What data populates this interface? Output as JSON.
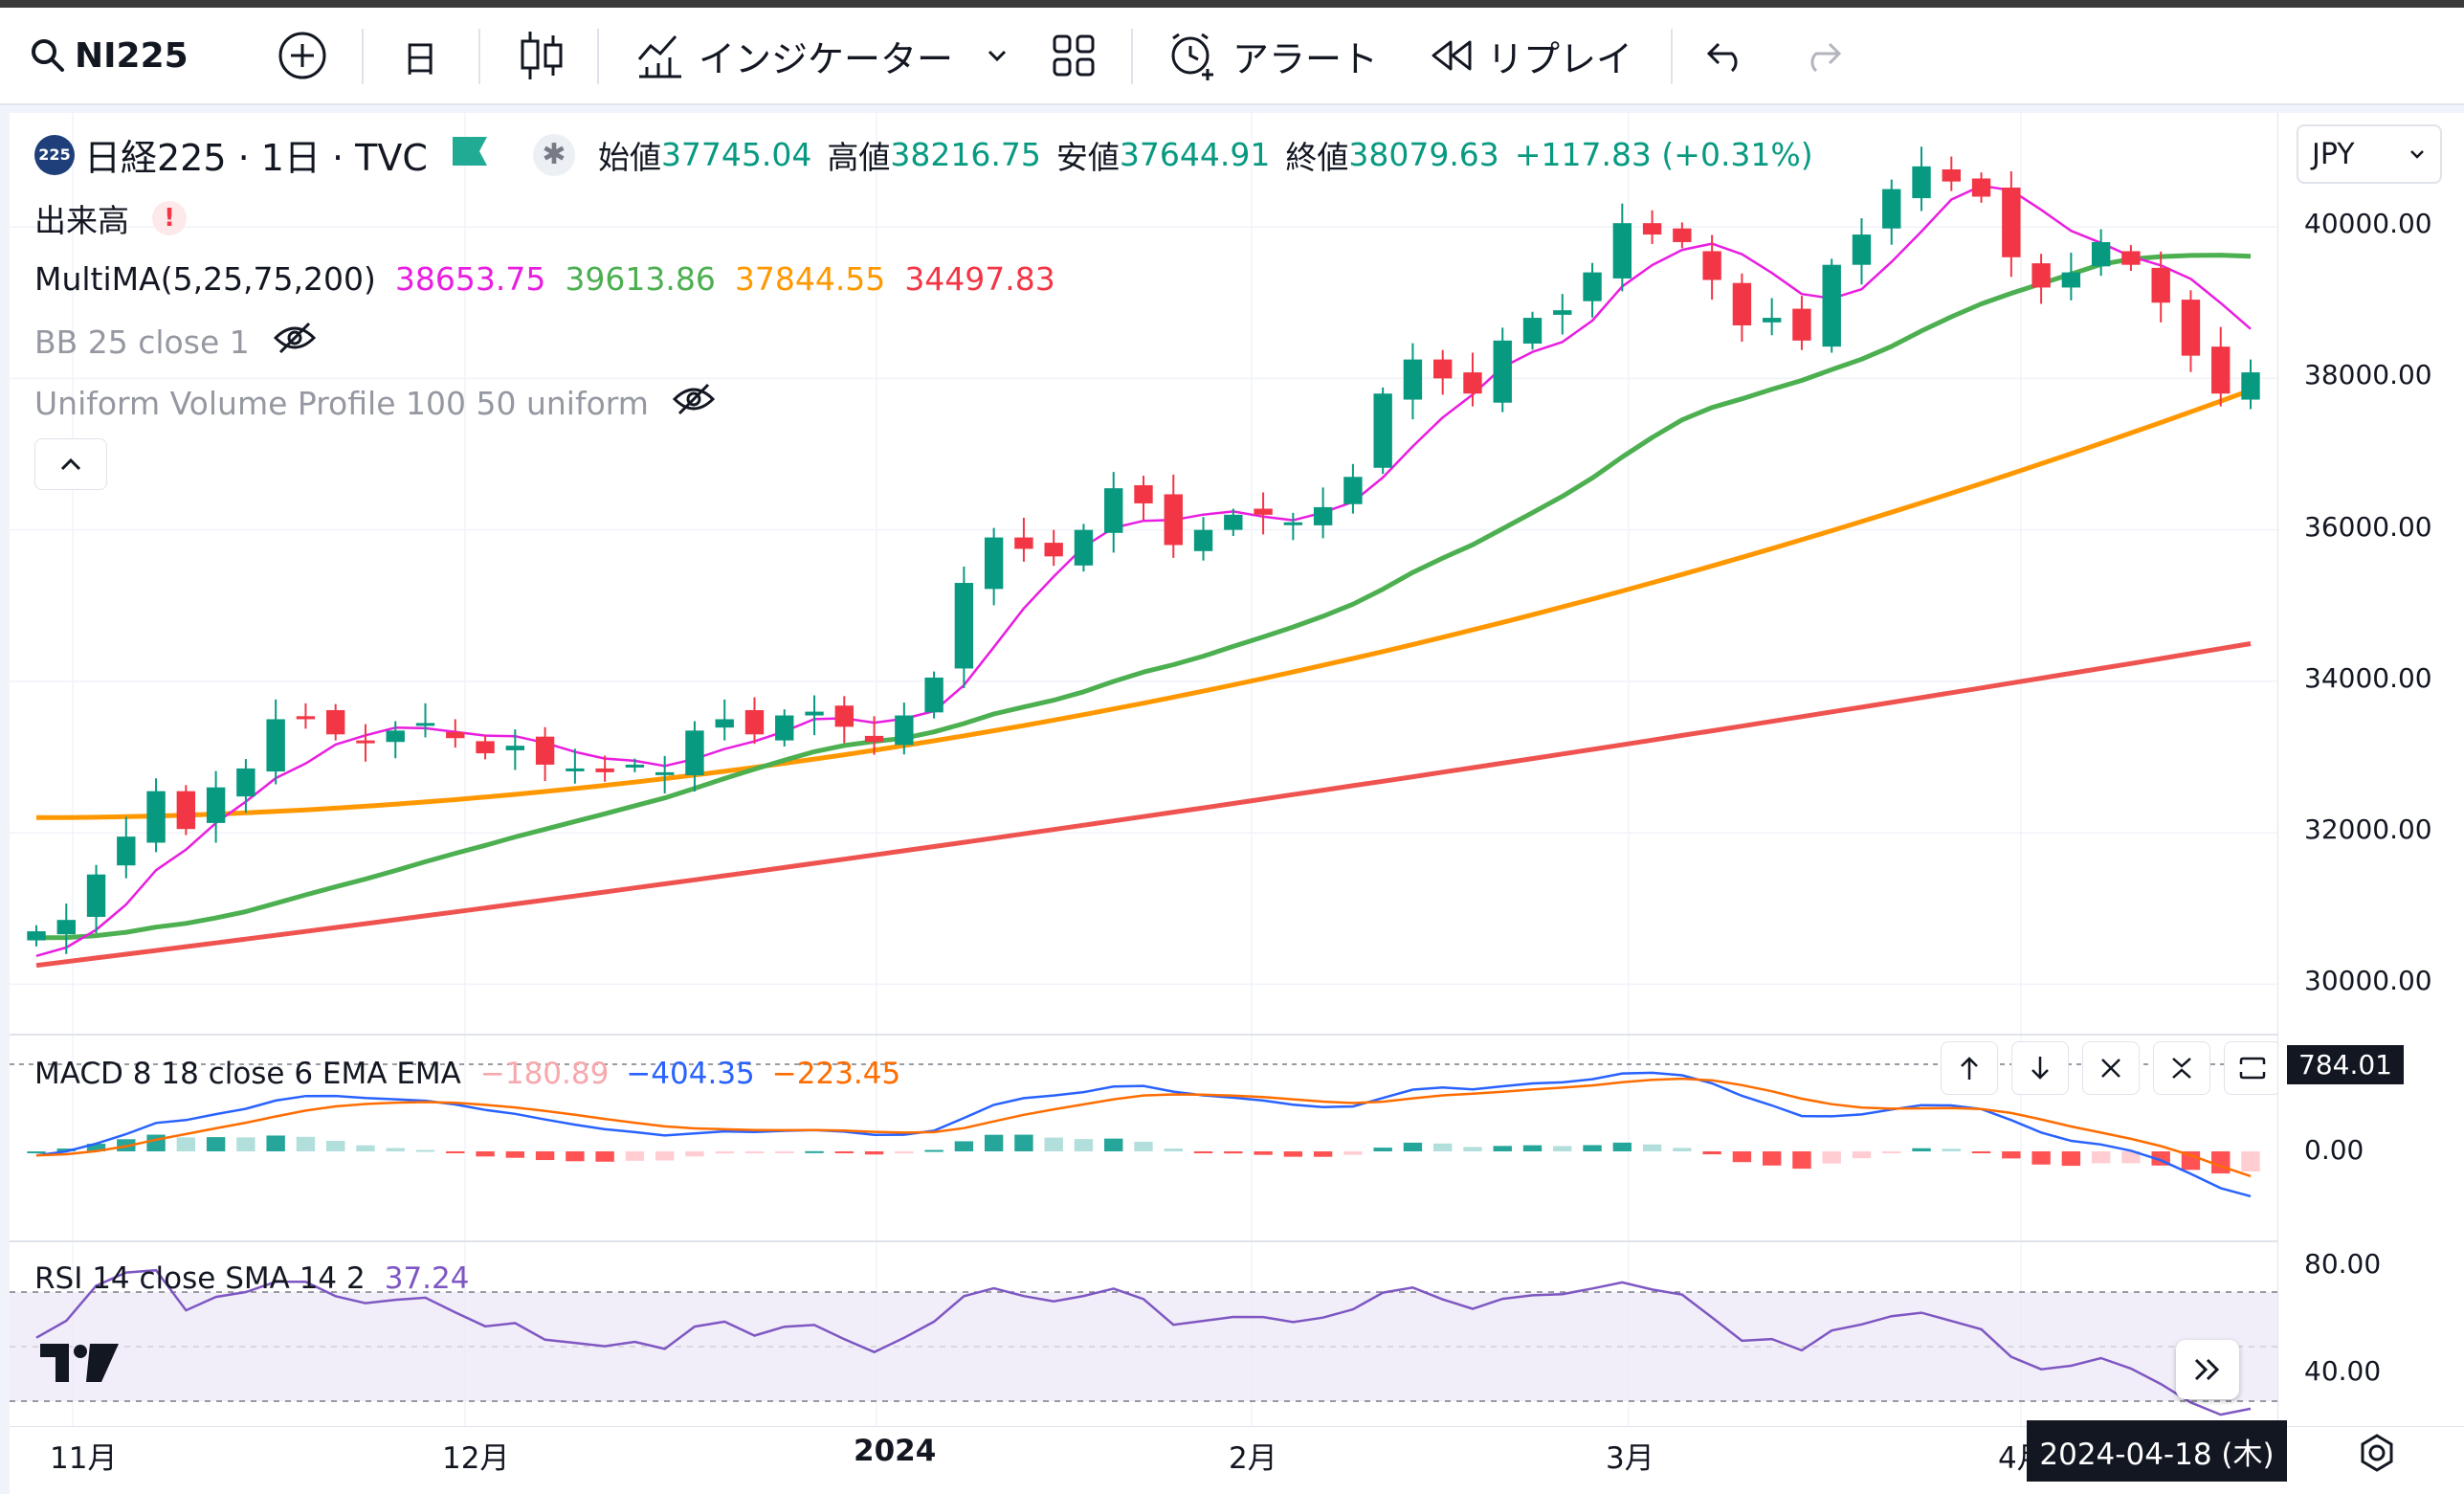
{
  "toolbar": {
    "symbol": "NI225",
    "interval": "日",
    "indicators_label": "インジケーター",
    "alert_label": "アラート",
    "replay_label": "リプレイ"
  },
  "legend": {
    "title": "日経225 · 1日 · TVC",
    "ohlc": [
      {
        "label": "始値",
        "value": "37745.04"
      },
      {
        "label": "高値",
        "value": "38216.75"
      },
      {
        "label": "安値",
        "value": "37644.91"
      },
      {
        "label": "終値",
        "value": "38079.63"
      }
    ],
    "change": "+117.83 (+0.31%)",
    "volume_label": "出来高",
    "multima_label": "MultiMA(5,25,75,200)",
    "multima_values": [
      "38653.75",
      "39613.86",
      "37844.55",
      "34497.83"
    ],
    "bb_label": "BB 25 close 1",
    "vp_label": "Uniform Volume Profile 100 50 uniform",
    "macd_label": "MACD 8 18 close 6 EMA EMA",
    "macd_values": [
      "−180.89",
      "−404.35",
      "−223.45"
    ],
    "rsi_label": "RSI 14 close SMA 14 2",
    "rsi_value": "37.24"
  },
  "currency": "JPY",
  "price_axis": [
    "40000.00",
    "38000.00",
    "36000.00",
    "34000.00",
    "32000.00",
    "30000.00"
  ],
  "macd_axis": [
    "784.01",
    "0.00"
  ],
  "rsi_axis": [
    "80.00",
    "40.00"
  ],
  "time_axis": [
    "11月",
    "12月",
    "2024",
    "2月",
    "3月",
    "4月"
  ],
  "crosshair_date": "2024-04-18 (木)",
  "colors": {
    "up": "#089981",
    "down": "#f23645",
    "ma5": "#e91ee0",
    "ma25": "#4caf50",
    "ma75": "#ff9800",
    "ma200": "#ef5350",
    "macd": "#2962ff",
    "signal": "#ff6d00",
    "rsi": "#7e57c2"
  },
  "chart_data": {
    "type": "candlestick",
    "x_range": [
      "2023-10-27",
      "2024-04-18"
    ],
    "ylim": [
      29500,
      41000
    ],
    "close_path": [
      30700,
      30850,
      31450,
      31950,
      32550,
      32050,
      32600,
      32850,
      33500,
      33500,
      33300,
      33200,
      33350,
      33450,
      33250,
      33050,
      33150,
      32900,
      32850,
      32800,
      32900,
      32800,
      33350,
      33500,
      33300,
      33550,
      33600,
      33400,
      33200,
      33550,
      34050,
      35300,
      35900,
      35750,
      35650,
      36000,
      36550,
      36350,
      35800,
      36000,
      36200,
      36200,
      36100,
      36300,
      36700,
      37800,
      38250,
      38000,
      37800,
      38500,
      38800,
      38900,
      39400,
      40050,
      39900,
      39800,
      39300,
      38700,
      38800,
      38500,
      39500,
      39900,
      40500,
      40800,
      40600,
      40400,
      39600,
      39200,
      39400,
      39800,
      39500,
      39000,
      38300,
      37800,
      38080
    ],
    "ma5_end": 38653.75,
    "ma25_end": 39613.86,
    "ma75_end": 37844.55,
    "ma200_end": 34497.83
  }
}
